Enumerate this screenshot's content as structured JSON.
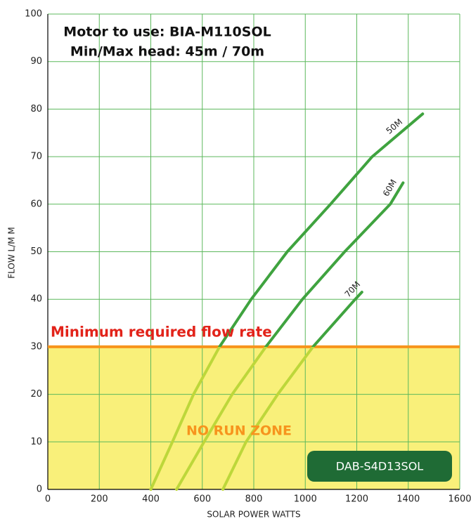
{
  "chart_data": {
    "type": "line",
    "title": "Motor to use: BIA-M110SOL",
    "subtitle": "Min/Max head: 45m / 70m",
    "x_label": "SOLAR POWER WATTS",
    "y_label": "FLOW L/M M",
    "xlim": [
      0,
      1600
    ],
    "ylim": [
      0,
      100
    ],
    "xticks": [
      0,
      200,
      400,
      600,
      800,
      1000,
      1200,
      1400,
      1600
    ],
    "yticks": [
      0,
      10,
      20,
      30,
      40,
      50,
      60,
      70,
      80,
      90,
      100
    ],
    "grid": true,
    "grid_color": "#5cb85c",
    "threshold": {
      "value": 30,
      "label": "Minimum required flow rate",
      "color": "#f7941d",
      "label_color": "#e2231a"
    },
    "zone": {
      "label": "NO RUN ZONE",
      "color": "#f9f07a",
      "label_color": "#f7941d"
    },
    "line_color": "#3fa33f",
    "zone_line_color": "#bdd73a",
    "model": "DAB-S4D13SOL",
    "model_color": "#1f6b35",
    "series": [
      {
        "name": "50M",
        "x": [
          400,
          484,
          566,
          667,
          790,
          930,
          1098,
          1260,
          1456
        ],
        "values": [
          0,
          10,
          20,
          30,
          40,
          50,
          60,
          70,
          79
        ]
      },
      {
        "name": "60M",
        "x": [
          500,
          607,
          716,
          847,
          989,
          1153,
          1330,
          1380
        ],
        "values": [
          0,
          10,
          20,
          30,
          40,
          50,
          60,
          64.5
        ]
      },
      {
        "name": "70M",
        "x": [
          680,
          770,
          893,
          1030,
          1194,
          1220
        ],
        "values": [
          0,
          10,
          20,
          30,
          40,
          41.5
        ]
      }
    ]
  }
}
